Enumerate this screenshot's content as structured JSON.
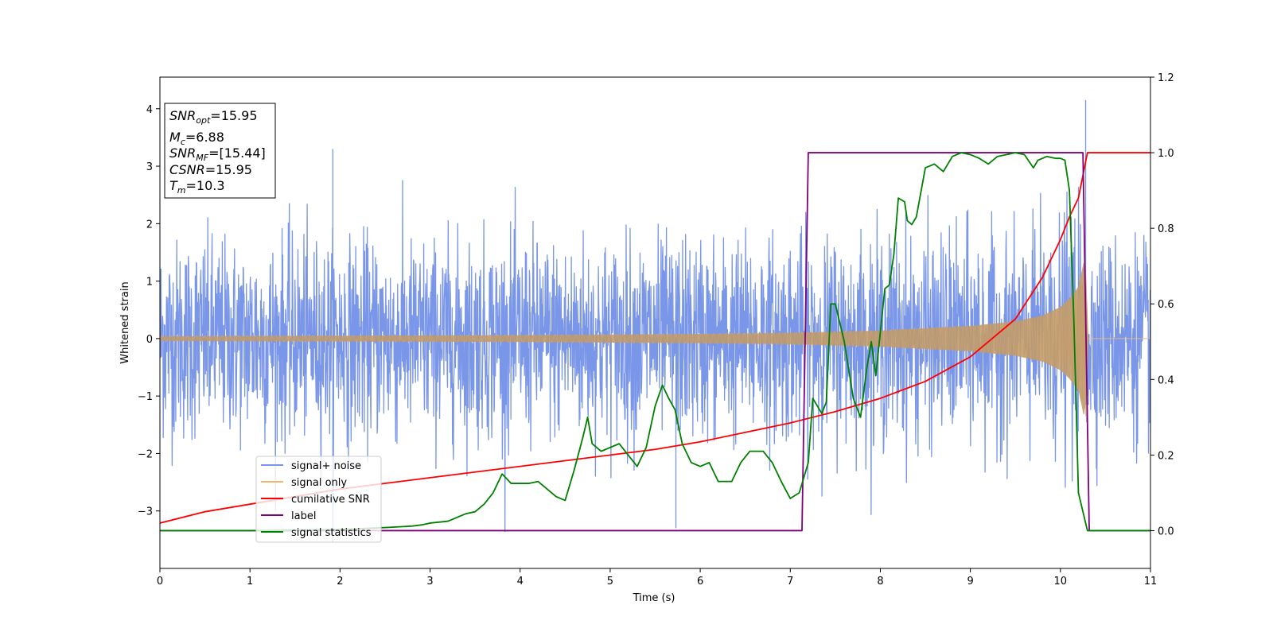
{
  "chart_data": {
    "type": "line",
    "xlabel": "Time (s)",
    "ylabel": "Whitened strain",
    "xlim": [
      0,
      11
    ],
    "ylim": [
      -4,
      4.55
    ],
    "y2lim": [
      -0.1,
      1.2
    ],
    "x_ticks": [
      0,
      1,
      2,
      3,
      4,
      5,
      6,
      7,
      8,
      9,
      10,
      11
    ],
    "x_tick_labels": [
      "0",
      "1",
      "2",
      "3",
      "4",
      "5",
      "6",
      "7",
      "8",
      "9",
      "10",
      "11"
    ],
    "y_ticks": [
      -3,
      -2,
      -1,
      0,
      1,
      2,
      3,
      4
    ],
    "y_tick_labels": [
      "−3",
      "−2",
      "−1",
      "0",
      "1",
      "2",
      "3",
      "4"
    ],
    "y2_ticks": [
      0.0,
      0.2,
      0.4,
      0.6,
      0.8,
      1.0,
      1.2
    ],
    "y2_tick_labels": [
      "0.0",
      "0.2",
      "0.4",
      "0.6",
      "0.8",
      "1.0",
      "1.2"
    ],
    "legend_position": "lower-left",
    "grid": false,
    "info_box": {
      "snr_opt_value": "=15.95",
      "mc_value": "=6.88",
      "snr_mf_value": "=[15.44]",
      "csnr_value": "=15.95",
      "tm_value": "=10.3"
    },
    "series": [
      {
        "name": "signal+ noise",
        "axis": "left",
        "color": "#7a96e8",
        "kind": "gaussian noise plus chirp, std ~0.85, sampled over 0-11 s",
        "notable_peaks": [
          [
            1.92,
            3.3
          ],
          [
            1.92,
            -3.55
          ],
          [
            5.73,
            -3.3
          ],
          [
            10.28,
            4.15
          ]
        ]
      },
      {
        "name": "signal only",
        "axis": "left",
        "color": "#f2b870",
        "kind": "chirp whose amplitude envelope grows until merger",
        "envelope": {
          "t": [
            0,
            2,
            4,
            6,
            7,
            8,
            9,
            9.5,
            9.8,
            10.0,
            10.1,
            10.2,
            10.28,
            10.3,
            11
          ],
          "amp": [
            0.04,
            0.05,
            0.06,
            0.08,
            0.1,
            0.14,
            0.22,
            0.3,
            0.4,
            0.55,
            0.7,
            0.9,
            1.5,
            0,
            0
          ]
        }
      },
      {
        "name": "cumilative SNR",
        "axis": "right",
        "color": "#ff0000",
        "x": [
          0,
          0.5,
          1,
          1.5,
          2,
          2.5,
          3,
          3.5,
          4,
          4.5,
          5,
          5.5,
          6,
          6.5,
          7,
          7.5,
          8,
          8.5,
          9,
          9.5,
          9.8,
          10.0,
          10.1,
          10.2,
          10.3,
          11
        ],
        "y": [
          0.02,
          0.05,
          0.07,
          0.09,
          0.11,
          0.125,
          0.14,
          0.155,
          0.17,
          0.185,
          0.2,
          0.215,
          0.235,
          0.26,
          0.285,
          0.315,
          0.35,
          0.395,
          0.46,
          0.56,
          0.67,
          0.77,
          0.83,
          0.88,
          1.0,
          1.0
        ]
      },
      {
        "name": "label",
        "axis": "right",
        "color": "#800080",
        "x": [
          0,
          7.13,
          7.2,
          10.25,
          10.32,
          11
        ],
        "y": [
          0,
          0,
          1,
          1,
          0,
          0
        ]
      },
      {
        "name": "signal statistics",
        "axis": "right",
        "color": "#008000",
        "x": [
          0,
          1.0,
          2.0,
          2.5,
          2.8,
          2.9,
          3.0,
          3.2,
          3.4,
          3.5,
          3.6,
          3.7,
          3.8,
          3.9,
          4.1,
          4.2,
          4.3,
          4.4,
          4.5,
          4.6,
          4.7,
          4.75,
          4.8,
          4.9,
          5.0,
          5.1,
          5.2,
          5.3,
          5.4,
          5.5,
          5.58,
          5.65,
          5.72,
          5.8,
          5.9,
          6.0,
          6.1,
          6.2,
          6.35,
          6.45,
          6.55,
          6.7,
          6.8,
          6.9,
          7.0,
          7.1,
          7.2,
          7.25,
          7.3,
          7.35,
          7.4,
          7.45,
          7.5,
          7.55,
          7.6,
          7.7,
          7.78,
          7.85,
          7.9,
          7.95,
          8.05,
          8.1,
          8.15,
          8.2,
          8.27,
          8.3,
          8.35,
          8.4,
          8.5,
          8.6,
          8.7,
          8.8,
          8.9,
          9.0,
          9.1,
          9.2,
          9.3,
          9.4,
          9.5,
          9.6,
          9.7,
          9.75,
          9.85,
          9.95,
          10.0,
          10.05,
          10.1,
          10.15,
          10.2,
          10.3,
          10.4,
          11
        ],
        "y": [
          0.0,
          0.0,
          0.003,
          0.008,
          0.012,
          0.015,
          0.02,
          0.025,
          0.045,
          0.05,
          0.07,
          0.1,
          0.15,
          0.125,
          0.125,
          0.13,
          0.11,
          0.09,
          0.08,
          0.16,
          0.25,
          0.3,
          0.23,
          0.21,
          0.22,
          0.23,
          0.2,
          0.17,
          0.22,
          0.33,
          0.385,
          0.35,
          0.32,
          0.23,
          0.18,
          0.17,
          0.18,
          0.13,
          0.13,
          0.18,
          0.21,
          0.21,
          0.18,
          0.13,
          0.085,
          0.1,
          0.18,
          0.35,
          0.33,
          0.31,
          0.34,
          0.6,
          0.6,
          0.55,
          0.5,
          0.35,
          0.3,
          0.43,
          0.5,
          0.41,
          0.64,
          0.65,
          0.73,
          0.88,
          0.87,
          0.82,
          0.81,
          0.83,
          0.96,
          0.97,
          0.95,
          0.99,
          1.0,
          0.995,
          0.985,
          0.97,
          0.99,
          0.995,
          1.0,
          0.995,
          0.96,
          0.98,
          0.99,
          0.985,
          0.985,
          0.98,
          0.9,
          0.55,
          0.1,
          0.0,
          0.0,
          0.0
        ]
      }
    ]
  }
}
